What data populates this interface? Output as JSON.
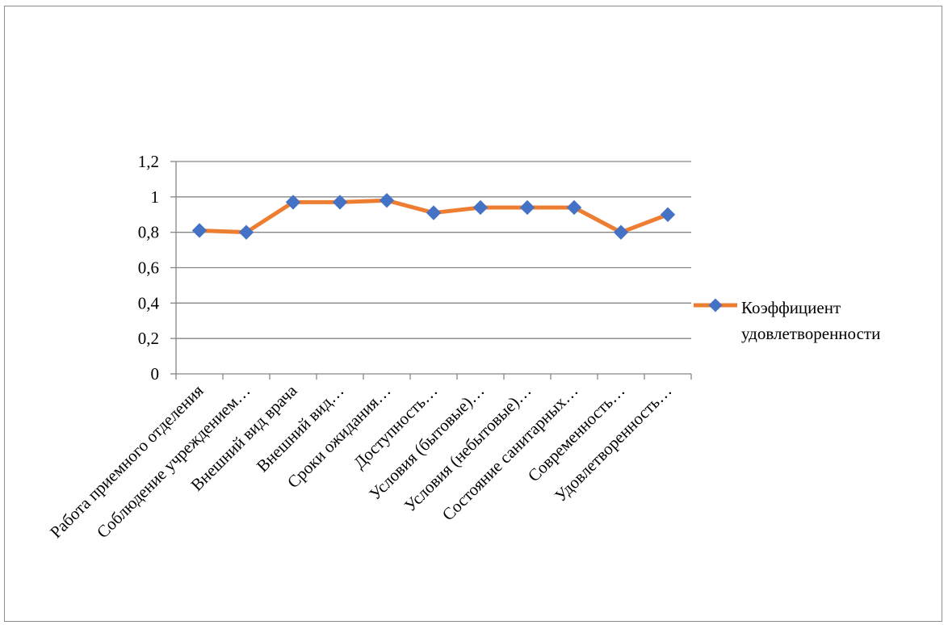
{
  "chart_data": {
    "type": "line",
    "categories": [
      "Работа приемного отделения",
      "Соблюдение учреждением…",
      "Внешний вид врача",
      "Внешний вид…",
      "Сроки ожидания…",
      "Доступность…",
      "Условия (бытовые)…",
      "Условия (небытовые)…",
      "Состояние санитарных…",
      "Современность…",
      "Удовлетворенность…"
    ],
    "series": [
      {
        "name": "Коэффициент удовлетворенности",
        "values": [
          0.81,
          0.8,
          0.97,
          0.97,
          0.98,
          0.91,
          0.94,
          0.94,
          0.94,
          0.8,
          0.9
        ]
      }
    ],
    "y_tick_labels": [
      "0",
      "0,2",
      "0,4",
      "0,6",
      "0,8",
      "1",
      "1,2"
    ],
    "legend": {
      "lines": [
        "Коэффициент",
        "удовлетворенности"
      ],
      "placement": "right"
    },
    "ylim": [
      0,
      1.2
    ],
    "grid": true,
    "colors": {
      "line": "#ed7d31",
      "marker": "#4472c4",
      "grid": "#868686",
      "axis": "#868686"
    }
  }
}
